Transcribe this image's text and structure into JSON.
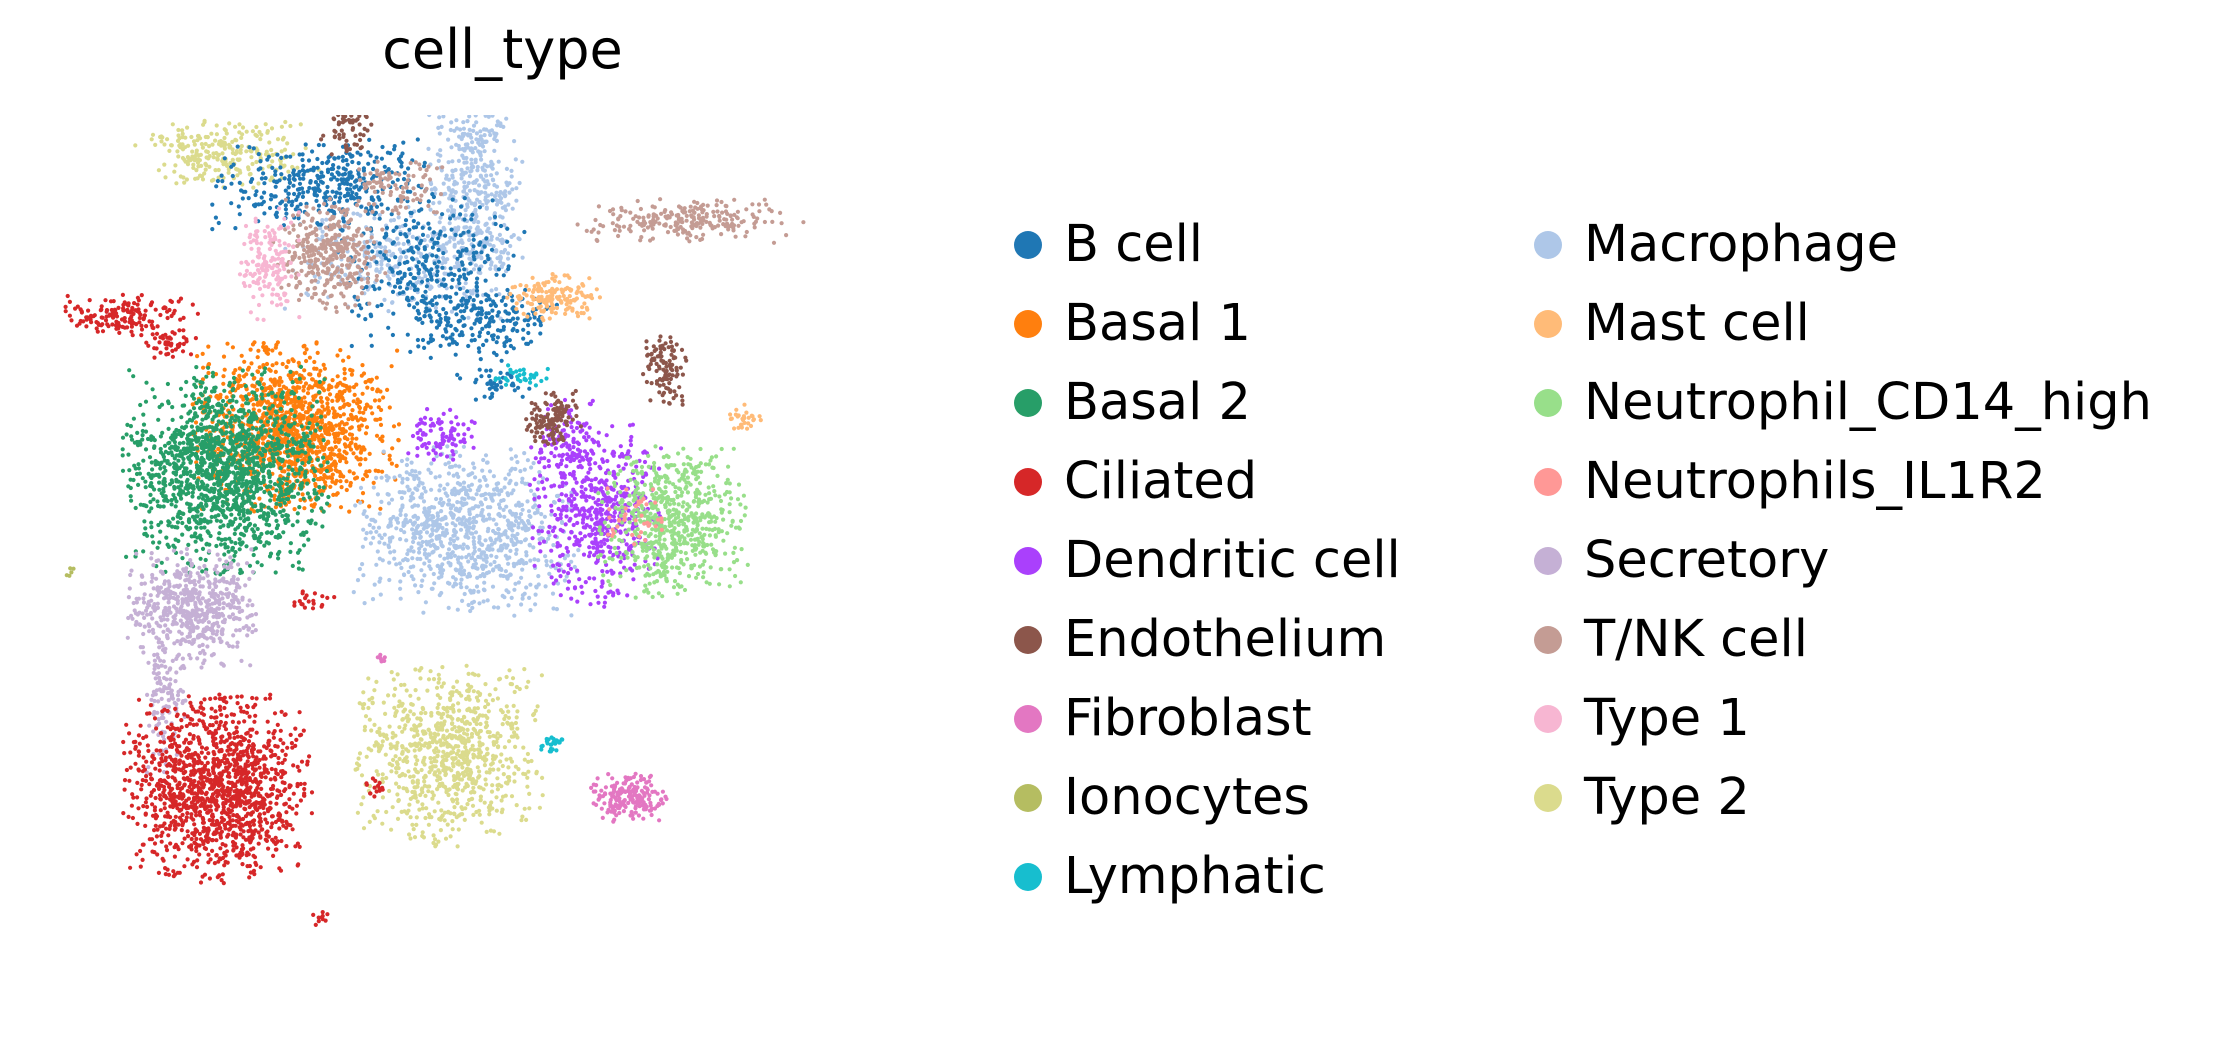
{
  "chart_data": {
    "type": "scatter",
    "title": "cell_type",
    "xlabel": "",
    "ylabel": "",
    "axes_visible": false,
    "grid": false,
    "legend_position": "right",
    "legend_columns": 2,
    "categories": [
      {
        "name": "B cell",
        "color": "#1f77b4"
      },
      {
        "name": "Basal 1",
        "color": "#ff7f0e"
      },
      {
        "name": "Basal 2",
        "color": "#279e68"
      },
      {
        "name": "Ciliated",
        "color": "#d62728"
      },
      {
        "name": "Dendritic cell",
        "color": "#aa40fc"
      },
      {
        "name": "Endothelium",
        "color": "#8c564b"
      },
      {
        "name": "Fibroblast",
        "color": "#e377c2"
      },
      {
        "name": "Ionocytes",
        "color": "#b5bd61"
      },
      {
        "name": "Lymphatic",
        "color": "#17becf"
      },
      {
        "name": "Macrophage",
        "color": "#aec7e8"
      },
      {
        "name": "Mast cell",
        "color": "#ffbb78"
      },
      {
        "name": "Neutrophil_CD14_high",
        "color": "#98df8a"
      },
      {
        "name": "Neutrophils_IL1R2",
        "color": "#ff9896"
      },
      {
        "name": "Secretory",
        "color": "#c5b0d5"
      },
      {
        "name": "T/NK cell",
        "color": "#c49c94"
      },
      {
        "name": "Type 1",
        "color": "#f7b6d2"
      },
      {
        "name": "Type 2",
        "color": "#dbdb8d"
      }
    ],
    "xlim": [
      0,
      100
    ],
    "ylim": [
      0,
      100
    ],
    "clusters": [
      {
        "category": 1,
        "x": 25,
        "y": 66,
        "sx": 5.5,
        "sy": 4.5,
        "n": 1300
      },
      {
        "category": 2,
        "x": 17,
        "y": 61,
        "sx": 5.5,
        "sy": 5.5,
        "n": 1500
      },
      {
        "category": 13,
        "x": 13,
        "y": 45,
        "sx": 3.5,
        "sy": 3.2,
        "n": 550
      },
      {
        "category": 13,
        "x": 10,
        "y": 34,
        "sx": 1.2,
        "sy": 4,
        "n": 120
      },
      {
        "category": 3,
        "x": 16,
        "y": 24,
        "sx": 5,
        "sy": 5,
        "n": 1300
      },
      {
        "category": 3,
        "x": 5,
        "y": 79,
        "sx": 4,
        "sy": 1.2,
        "n": 160
      },
      {
        "category": 3,
        "x": 10,
        "y": 76,
        "sx": 1.6,
        "sy": 1,
        "n": 50
      },
      {
        "category": 16,
        "x": 43,
        "y": 28,
        "sx": 5,
        "sy": 5,
        "n": 850
      },
      {
        "category": 16,
        "x": 17,
        "y": 98,
        "sx": 5,
        "sy": 2,
        "n": 260
      },
      {
        "category": 9,
        "x": 45,
        "y": 54,
        "sx": 6,
        "sy": 4.5,
        "n": 900
      },
      {
        "category": 9,
        "x": 46,
        "y": 94,
        "sx": 2.5,
        "sy": 7,
        "n": 500
      },
      {
        "category": 9,
        "x": 37,
        "y": 86,
        "sx": 6,
        "sy": 3,
        "n": 300
      },
      {
        "category": 4,
        "x": 60,
        "y": 56,
        "sx": 3.5,
        "sy": 5,
        "n": 520
      },
      {
        "category": 4,
        "x": 57,
        "y": 64,
        "sx": 2,
        "sy": 2.5,
        "n": 100
      },
      {
        "category": 4,
        "x": 42,
        "y": 65,
        "sx": 2,
        "sy": 1.5,
        "n": 90
      },
      {
        "category": 11,
        "x": 69,
        "y": 55,
        "sx": 4,
        "sy": 4,
        "n": 650
      },
      {
        "category": 12,
        "x": 64,
        "y": 55,
        "sx": 2,
        "sy": 2,
        "n": 40
      },
      {
        "category": 0,
        "x": 28,
        "y": 94,
        "sx": 6,
        "sy": 2.5,
        "n": 380
      },
      {
        "category": 0,
        "x": 41,
        "y": 84,
        "sx": 5,
        "sy": 4,
        "n": 340
      },
      {
        "category": 0,
        "x": 47,
        "y": 78,
        "sx": 4,
        "sy": 2,
        "n": 160
      },
      {
        "category": 0,
        "x": 48,
        "y": 71,
        "sx": 2.2,
        "sy": 1,
        "n": 40
      },
      {
        "category": 14,
        "x": 29,
        "y": 86,
        "sx": 3,
        "sy": 3,
        "n": 340
      },
      {
        "category": 14,
        "x": 37,
        "y": 94,
        "sx": 2.5,
        "sy": 1.5,
        "n": 90
      },
      {
        "category": 14,
        "x": 71,
        "y": 90,
        "sx": 6,
        "sy": 1.2,
        "n": 230
      },
      {
        "category": 15,
        "x": 22,
        "y": 85,
        "sx": 1.6,
        "sy": 3,
        "n": 160
      },
      {
        "category": 10,
        "x": 55,
        "y": 81,
        "sx": 2.5,
        "sy": 1.3,
        "n": 160
      },
      {
        "category": 10,
        "x": 77,
        "y": 67,
        "sx": 1,
        "sy": 0.8,
        "n": 30
      },
      {
        "category": 5,
        "x": 31,
        "y": 103,
        "sx": 1.5,
        "sy": 2.5,
        "n": 130
      },
      {
        "category": 5,
        "x": 55,
        "y": 67,
        "sx": 1.5,
        "sy": 1.5,
        "n": 130
      },
      {
        "category": 5,
        "x": 68,
        "y": 73,
        "sx": 1.2,
        "sy": 2,
        "n": 110
      },
      {
        "category": 6,
        "x": 64,
        "y": 23,
        "sx": 2.2,
        "sy": 1.3,
        "n": 190
      },
      {
        "category": 6,
        "x": 31,
        "y": 110,
        "sx": 0.7,
        "sy": 3,
        "n": 70
      },
      {
        "category": 6,
        "x": 35,
        "y": 39,
        "sx": 0.5,
        "sy": 0.5,
        "n": 8
      },
      {
        "category": 8,
        "x": 26,
        "y": 109,
        "sx": 1.3,
        "sy": 1,
        "n": 60
      },
      {
        "category": 8,
        "x": 55,
        "y": 29,
        "sx": 0.8,
        "sy": 0.7,
        "n": 25
      },
      {
        "category": 8,
        "x": 52,
        "y": 72,
        "sx": 1.8,
        "sy": 0.6,
        "n": 35
      },
      {
        "category": 7,
        "x": -1,
        "y": 49,
        "sx": 0.3,
        "sy": 0.3,
        "n": 5
      },
      {
        "category": 3,
        "x": 28,
        "y": 9,
        "sx": 0.5,
        "sy": 0.4,
        "n": 10
      },
      {
        "category": 3,
        "x": 27,
        "y": 46,
        "sx": 1.5,
        "sy": 0.5,
        "n": 20
      },
      {
        "category": 3,
        "x": 34,
        "y": 24,
        "sx": 1,
        "sy": 0.6,
        "n": 15
      }
    ]
  }
}
